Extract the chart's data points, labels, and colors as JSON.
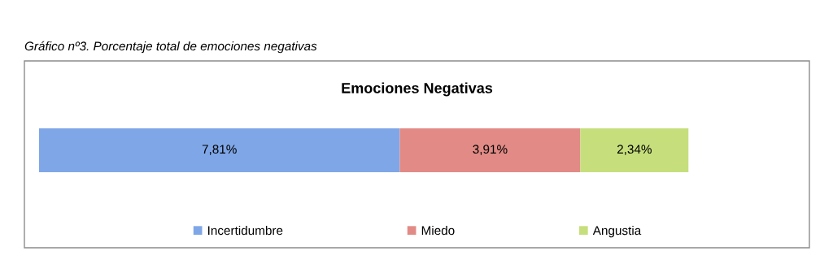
{
  "chart_data": {
    "type": "bar",
    "orientation": "horizontal",
    "stacked": true,
    "title": "Emociones Negativas",
    "annotations": [
      "Gráfico nº3. Porcentaje total de emociones negativas"
    ],
    "categories": [
      null
    ],
    "series": [
      {
        "name": "Incertidumbre",
        "color": "#7fa7e8",
        "values": [
          7.81
        ],
        "value_labels": [
          "7,81%"
        ]
      },
      {
        "name": "Miedo",
        "color": "#e28b86",
        "values": [
          3.91
        ],
        "value_labels": [
          "3,91%"
        ]
      },
      {
        "name": "Angustia",
        "color": "#c6df7c",
        "values": [
          2.34
        ],
        "value_labels": [
          "2,34%"
        ]
      }
    ],
    "legend": "bottom"
  }
}
